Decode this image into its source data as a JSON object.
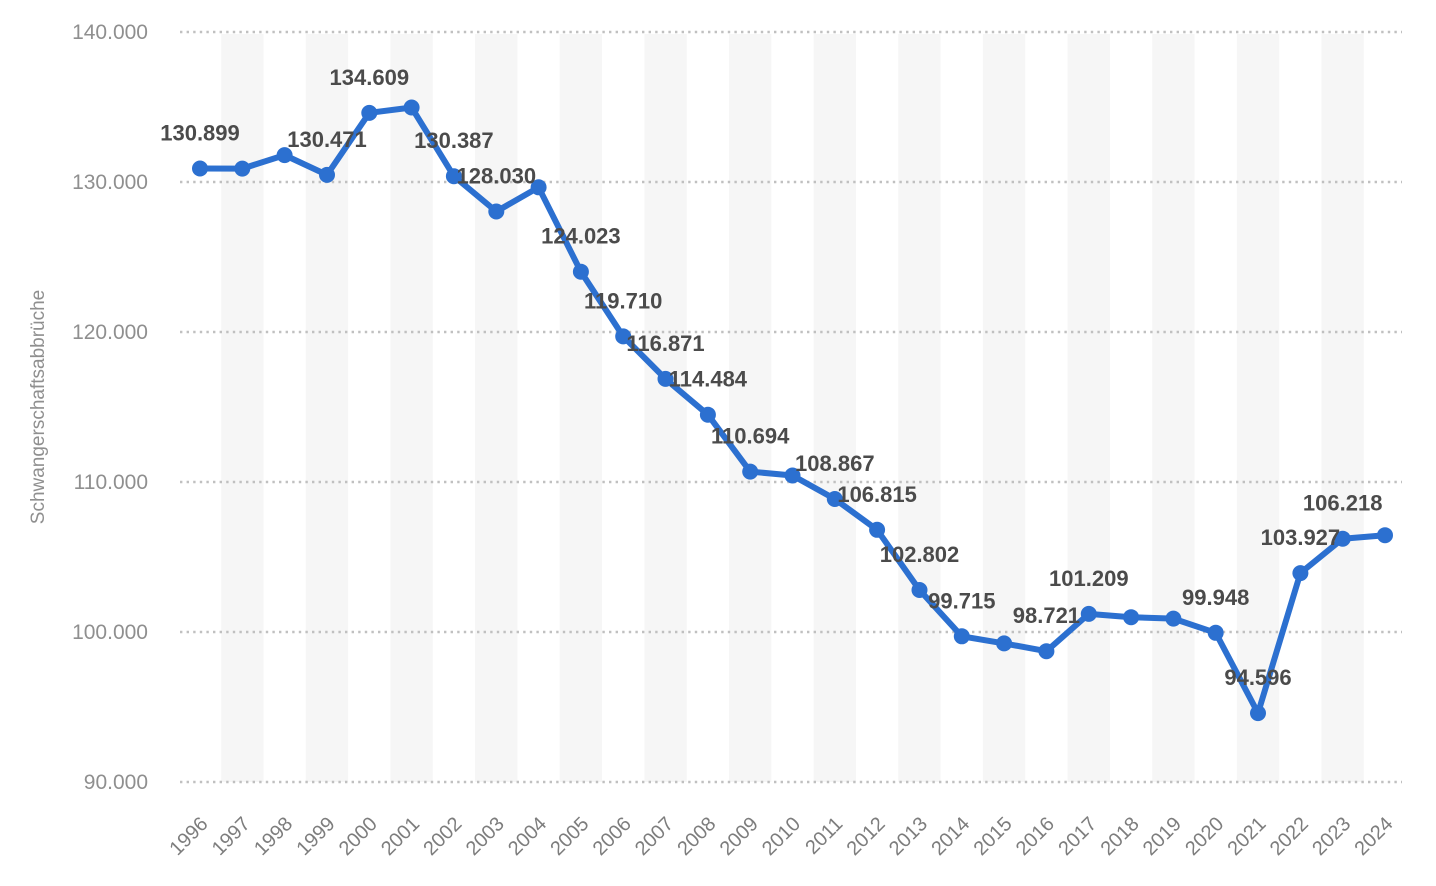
{
  "page": {
    "background": "#ffffff"
  },
  "y_axis": {
    "title": "Schwangerschaftsabbrüche",
    "ticks": [
      "90.000",
      "100.000",
      "110.000",
      "120.000",
      "130.000",
      "140.000"
    ]
  },
  "x_axis": {
    "ticks": [
      "1996",
      "1997",
      "1998",
      "1999",
      "2000",
      "2001",
      "2002",
      "2003",
      "2004",
      "2005",
      "2006",
      "2007",
      "2008",
      "2009",
      "2010",
      "2011",
      "2012",
      "2013",
      "2014",
      "2015",
      "2016",
      "2017",
      "2018",
      "2019",
      "2020",
      "2021",
      "2022",
      "2023",
      "2024"
    ]
  },
  "chart_data": {
    "type": "line",
    "title": "",
    "xlabel": "",
    "ylabel": "Schwangerschaftsabbrüche",
    "x": [
      1996,
      1997,
      1998,
      1999,
      2000,
      2001,
      2002,
      2003,
      2004,
      2005,
      2006,
      2007,
      2008,
      2009,
      2010,
      2011,
      2012,
      2013,
      2014,
      2015,
      2016,
      2017,
      2018,
      2019,
      2020,
      2021,
      2022,
      2023,
      2024
    ],
    "values": [
      130899,
      130890,
      131795,
      130471,
      134609,
      134964,
      130387,
      128030,
      129650,
      124023,
      119710,
      116871,
      114484,
      110694,
      110431,
      108867,
      106815,
      102802,
      99715,
      99237,
      98721,
      101209,
      100986,
      100893,
      99948,
      94596,
      103927,
      106218,
      106455
    ],
    "point_labels": [
      "130.899",
      null,
      null,
      "130.471",
      "134.609",
      null,
      "130.387",
      "128.030",
      null,
      "124.023",
      "119.710",
      "116.871",
      "114.484",
      "110.694",
      null,
      "108.867",
      "106.815",
      "102.802",
      "99.715",
      null,
      "98.721",
      "101.209",
      null,
      null,
      "99.948",
      "94.596",
      "103.927",
      "106.218",
      null
    ],
    "ylim": [
      90000,
      140000
    ],
    "ytick_step": 10000,
    "grid": "horizontal-dotted",
    "stripes": "alternating-vertical-odd-years",
    "legend": "none",
    "marker": "circle",
    "colors": {
      "line": "#2c70d0",
      "point_label": "#4b4b4b",
      "y_tick_label": "#8f8f8f",
      "x_tick_label": "#7d7d7d",
      "y_axis_title": "#8f8f8f",
      "gridline": "#c0c0c0",
      "stripe": "#f6f6f6",
      "background": "#ffffff"
    }
  }
}
